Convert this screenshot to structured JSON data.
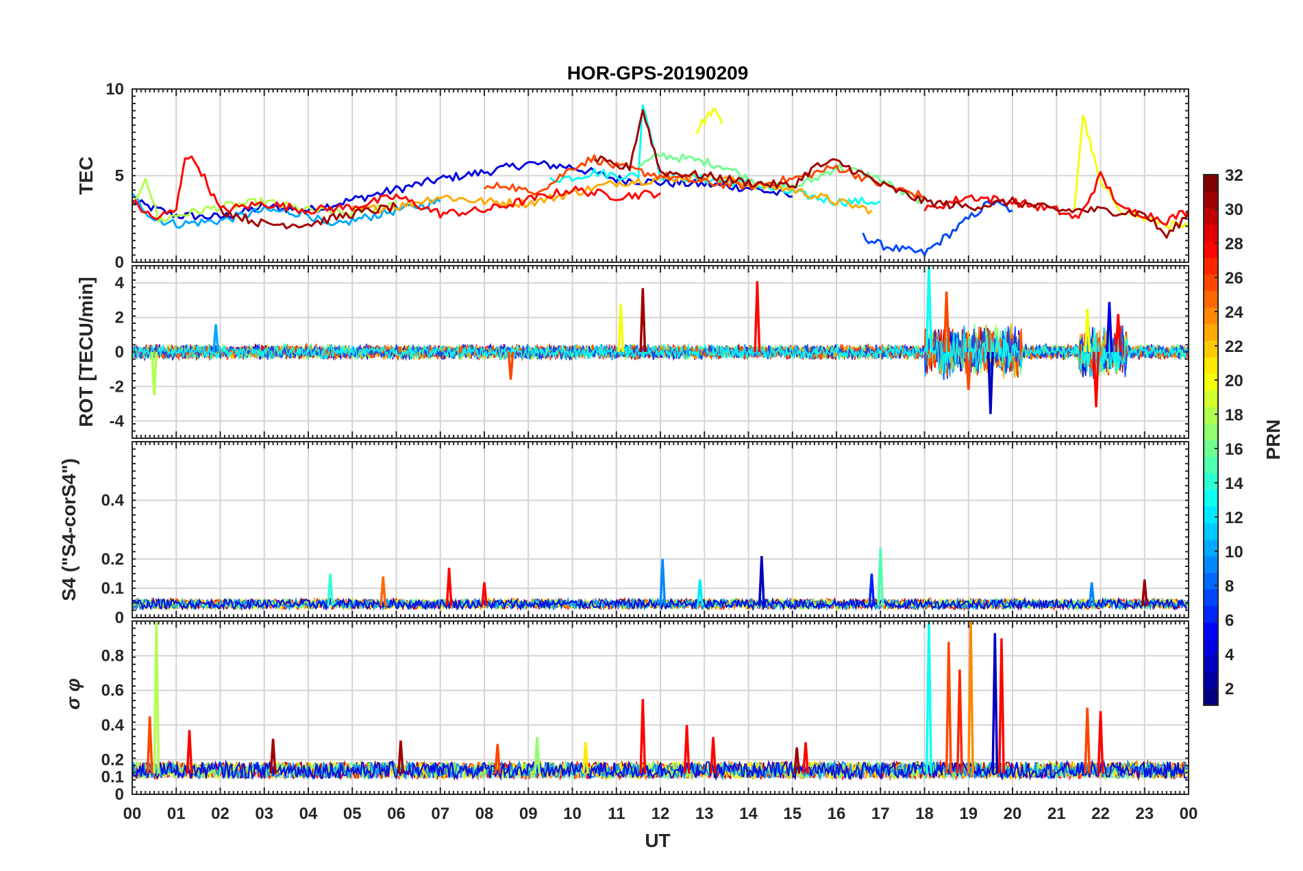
{
  "chart_data": {
    "type": "line",
    "title": "HOR-GPS-20190209",
    "xlabel": "UT",
    "x_tick_labels": [
      "00",
      "01",
      "02",
      "03",
      "04",
      "05",
      "06",
      "07",
      "08",
      "09",
      "10",
      "11",
      "12",
      "13",
      "14",
      "15",
      "16",
      "17",
      "18",
      "19",
      "20",
      "21",
      "22",
      "23",
      "00"
    ],
    "xlim": [
      0,
      24
    ],
    "colorbar": {
      "label": "PRN",
      "ticks": [
        "2",
        "4",
        "6",
        "8",
        "10",
        "12",
        "14",
        "16",
        "18",
        "20",
        "22",
        "24",
        "26",
        "28",
        "30",
        "32"
      ],
      "range": [
        1,
        32
      ]
    },
    "panels": [
      {
        "id": "tec",
        "ylabel": "TEC",
        "ylim": [
          0,
          10
        ],
        "yticks": [
          "0",
          "5",
          "10"
        ],
        "series": [
          {
            "prn": 4,
            "x": [
              0,
              1,
              2,
              3,
              4,
              5,
              6,
              7,
              8,
              9,
              10,
              11,
              12,
              13,
              14,
              15
            ],
            "y": [
              3.5,
              2.7,
              2.6,
              3.2,
              3.0,
              3.6,
              4.2,
              4.8,
              5.2,
              5.7,
              5.5,
              4.8,
              4.6,
              4.5,
              4.3,
              3.8
            ]
          },
          {
            "prn": 7,
            "x": [
              16.6,
              17,
              17.5,
              18,
              18.5,
              19,
              19.5,
              20
            ],
            "y": [
              1.5,
              1.0,
              0.7,
              0.5,
              1.5,
              2.5,
              3.5,
              3.0
            ]
          },
          {
            "prn": 10,
            "x": [
              0,
              0.5,
              1,
              2,
              3,
              4,
              4.5,
              5,
              6,
              7
            ],
            "y": [
              3.8,
              2.5,
              2.2,
              2.4,
              3.0,
              2.8,
              2.0,
              2.4,
              3.0,
              3.5
            ]
          },
          {
            "prn": 13,
            "x": [
              9.5,
              10,
              10.5,
              11,
              11.5,
              11.6,
              12,
              13,
              14,
              15,
              16,
              17
            ],
            "y": [
              4.8,
              4.9,
              5.2,
              5.0,
              5.0,
              9.3,
              5.0,
              4.8,
              4.5,
              4.0,
              3.5,
              3.5
            ]
          },
          {
            "prn": 16,
            "x": [
              11.5,
              12,
              12.5,
              13,
              13.5,
              14,
              14.5,
              15,
              15.5,
              16,
              16.5,
              17,
              17.5,
              18
            ],
            "y": [
              5.5,
              6.2,
              6.0,
              5.8,
              5.5,
              4.8,
              4.5,
              4.3,
              4.8,
              5.5,
              5.2,
              4.8,
              4.0,
              3.5
            ]
          },
          {
            "prn": 18,
            "x": [
              0,
              0.3,
              0.6,
              1,
              2,
              3,
              4,
              5,
              6
            ],
            "y": [
              3.0,
              5.0,
              2.4,
              2.7,
              3.2,
              3.5,
              3.0,
              2.8,
              3.5
            ]
          },
          {
            "prn": 20,
            "x": [
              12.8,
              13,
              13.2,
              13.4
            ],
            "y": [
              7.5,
              8.2,
              8.8,
              8.0
            ]
          },
          {
            "prn": 20,
            "x": [
              21.4,
              21.6,
              21.8,
              22,
              22.5,
              23,
              23.5,
              24
            ],
            "y": [
              3.0,
              8.5,
              6.5,
              4.5,
              3.0,
              2.5,
              2.2,
              2.0
            ]
          },
          {
            "prn": 23,
            "x": [
              5,
              6,
              7,
              8,
              9,
              10,
              11,
              12,
              13,
              14,
              15,
              16,
              16.8
            ],
            "y": [
              3.0,
              3.2,
              3.8,
              3.5,
              3.4,
              4.0,
              4.6,
              4.8,
              5.0,
              4.5,
              4.2,
              3.5,
              3.0
            ]
          },
          {
            "prn": 26,
            "x": [
              8,
              8.5,
              9,
              9.5,
              10,
              10.5,
              11,
              12,
              13,
              14,
              15,
              16,
              17,
              18
            ],
            "y": [
              4.2,
              4.5,
              4.0,
              4.5,
              5.5,
              6.0,
              5.5,
              5.0,
              4.6,
              4.4,
              4.8,
              5.5,
              4.5,
              3.8
            ]
          },
          {
            "prn": 28,
            "x": [
              0,
              0.5,
              1,
              1.2,
              1.5,
              2,
              3,
              4,
              5,
              6,
              7,
              8,
              9,
              10,
              11,
              12
            ],
            "y": [
              3.5,
              2.5,
              3.0,
              6.2,
              5.6,
              3.0,
              3.4,
              3.0,
              3.2,
              3.8,
              2.8,
              3.0,
              3.6,
              4.2,
              3.8,
              4.0
            ]
          },
          {
            "prn": 28,
            "x": [
              18,
              19,
              20,
              21,
              21.5,
              22,
              22.5,
              23,
              23.5,
              24
            ],
            "y": [
              3.0,
              3.8,
              3.5,
              3.0,
              2.5,
              5.0,
              3.0,
              2.8,
              2.4,
              3.0
            ]
          },
          {
            "prn": 31,
            "x": [
              2,
              3,
              4,
              5,
              6
            ],
            "y": [
              3.0,
              2.2,
              2.2,
              2.8,
              3.2
            ]
          },
          {
            "prn": 31,
            "x": [
              10.5,
              11,
              11.3,
              11.6,
              12,
              13,
              14,
              15,
              15.5,
              16,
              16.5,
              17,
              18,
              19,
              20,
              21,
              22,
              23,
              23.5,
              24
            ],
            "y": [
              6.0,
              5.5,
              5.5,
              8.8,
              5.2,
              5.0,
              4.6,
              4.4,
              5.5,
              5.8,
              5.2,
              4.5,
              3.5,
              3.2,
              3.5,
              3.0,
              3.0,
              2.8,
              1.5,
              2.8
            ]
          }
        ]
      },
      {
        "id": "rot",
        "ylabel": "ROT [TECU/min]",
        "ylim": [
          -5,
          5
        ],
        "yticks": [
          "-4",
          "-2",
          "0",
          "2",
          "4"
        ],
        "spikes": [
          {
            "prn": 18,
            "x": 0.5,
            "y": -2.5
          },
          {
            "prn": 10,
            "x": 1.9,
            "y": 1.6
          },
          {
            "prn": 26,
            "x": 8.6,
            "y": -1.6
          },
          {
            "prn": 20,
            "x": 11.1,
            "y": 2.8
          },
          {
            "prn": 31,
            "x": 11.6,
            "y": 3.7
          },
          {
            "prn": 28,
            "x": 14.2,
            "y": 4.1
          },
          {
            "prn": 13,
            "x": 18.1,
            "y": 5.0
          },
          {
            "prn": 26,
            "x": 18.5,
            "y": 3.5
          },
          {
            "prn": 3,
            "x": 19.5,
            "y": -3.6
          },
          {
            "prn": 26,
            "x": 19.0,
            "y": -2.2
          },
          {
            "prn": 20,
            "x": 21.7,
            "y": 2.5
          },
          {
            "prn": 28,
            "x": 21.9,
            "y": -3.2
          },
          {
            "prn": 4,
            "x": 22.2,
            "y": 2.9
          },
          {
            "prn": 28,
            "x": 22.4,
            "y": 2.2
          }
        ]
      },
      {
        "id": "s4",
        "ylabel": "S4 (\"S4-corS4\")",
        "ylim": [
          0,
          0.6
        ],
        "yticks": [
          "0",
          "0.1",
          "0.2",
          "0.4"
        ],
        "baseline": 0.04,
        "spikes": [
          {
            "prn": 14,
            "x": 4.5,
            "y": 0.15
          },
          {
            "prn": 25,
            "x": 5.7,
            "y": 0.14
          },
          {
            "prn": 28,
            "x": 7.2,
            "y": 0.17
          },
          {
            "prn": 28,
            "x": 8.0,
            "y": 0.12
          },
          {
            "prn": 9,
            "x": 12.05,
            "y": 0.2
          },
          {
            "prn": 12,
            "x": 12.9,
            "y": 0.13
          },
          {
            "prn": 3,
            "x": 14.3,
            "y": 0.21
          },
          {
            "prn": 6,
            "x": 16.8,
            "y": 0.15
          },
          {
            "prn": 15,
            "x": 17.0,
            "y": 0.24
          },
          {
            "prn": 9,
            "x": 21.8,
            "y": 0.12
          },
          {
            "prn": 31,
            "x": 23.0,
            "y": 0.13
          }
        ]
      },
      {
        "id": "sigma",
        "ylabel": "σ φ",
        "ylim": [
          0,
          1
        ],
        "yticks": [
          "0",
          "0.1",
          "0.2",
          "0.4",
          "0.6",
          "0.8"
        ],
        "baseline": 0.12,
        "spikes": [
          {
            "prn": 18,
            "x": 0.55,
            "y": 1.0
          },
          {
            "prn": 26,
            "x": 0.4,
            "y": 0.45
          },
          {
            "prn": 28,
            "x": 1.3,
            "y": 0.37
          },
          {
            "prn": 31,
            "x": 3.2,
            "y": 0.32
          },
          {
            "prn": 31,
            "x": 6.1,
            "y": 0.31
          },
          {
            "prn": 26,
            "x": 8.3,
            "y": 0.29
          },
          {
            "prn": 17,
            "x": 9.2,
            "y": 0.33
          },
          {
            "prn": 21,
            "x": 10.3,
            "y": 0.3
          },
          {
            "prn": 28,
            "x": 11.6,
            "y": 0.55
          },
          {
            "prn": 28,
            "x": 12.6,
            "y": 0.4
          },
          {
            "prn": 28,
            "x": 13.2,
            "y": 0.33
          },
          {
            "prn": 28,
            "x": 15.3,
            "y": 0.3
          },
          {
            "prn": 31,
            "x": 15.1,
            "y": 0.27
          },
          {
            "prn": 13,
            "x": 18.1,
            "y": 1.0
          },
          {
            "prn": 26,
            "x": 18.55,
            "y": 0.88
          },
          {
            "prn": 27,
            "x": 18.8,
            "y": 0.72
          },
          {
            "prn": 24,
            "x": 19.05,
            "y": 1.0
          },
          {
            "prn": 3,
            "x": 19.6,
            "y": 0.93
          },
          {
            "prn": 28,
            "x": 19.75,
            "y": 0.9
          },
          {
            "prn": 26,
            "x": 21.7,
            "y": 0.5
          },
          {
            "prn": 28,
            "x": 22.0,
            "y": 0.48
          }
        ]
      }
    ]
  }
}
